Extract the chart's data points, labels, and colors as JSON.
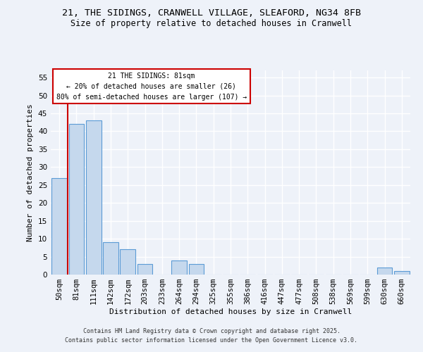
{
  "title1": "21, THE SIDINGS, CRANWELL VILLAGE, SLEAFORD, NG34 8FB",
  "title2": "Size of property relative to detached houses in Cranwell",
  "xlabel": "Distribution of detached houses by size in Cranwell",
  "ylabel": "Number of detached properties",
  "categories": [
    "50sqm",
    "81sqm",
    "111sqm",
    "142sqm",
    "172sqm",
    "203sqm",
    "233sqm",
    "264sqm",
    "294sqm",
    "325sqm",
    "355sqm",
    "386sqm",
    "416sqm",
    "447sqm",
    "477sqm",
    "508sqm",
    "538sqm",
    "569sqm",
    "599sqm",
    "630sqm",
    "660sqm"
  ],
  "values": [
    27,
    42,
    43,
    9,
    7,
    3,
    0,
    4,
    3,
    0,
    0,
    0,
    0,
    0,
    0,
    0,
    0,
    0,
    0,
    2,
    1
  ],
  "bar_color": "#c5d8ed",
  "bar_edge_color": "#5b9bd5",
  "highlight_line_index": 1,
  "annotation_title": "21 THE SIDINGS: 81sqm",
  "annotation_line1": "← 20% of detached houses are smaller (26)",
  "annotation_line2": "80% of semi-detached houses are larger (107) →",
  "annotation_box_color": "#ffffff",
  "annotation_border_color": "#cc0000",
  "highlight_line_color": "#cc0000",
  "ylim": [
    0,
    57
  ],
  "yticks": [
    0,
    5,
    10,
    15,
    20,
    25,
    30,
    35,
    40,
    45,
    50,
    55
  ],
  "footer1": "Contains HM Land Registry data © Crown copyright and database right 2025.",
  "footer2": "Contains public sector information licensed under the Open Government Licence v3.0.",
  "bg_color": "#eef2f9",
  "grid_color": "#ffffff",
  "title_fontsize": 9.5,
  "subtitle_fontsize": 8.5,
  "axis_label_fontsize": 8,
  "tick_fontsize": 7.5,
  "annotation_fontsize": 7,
  "footer_fontsize": 6
}
